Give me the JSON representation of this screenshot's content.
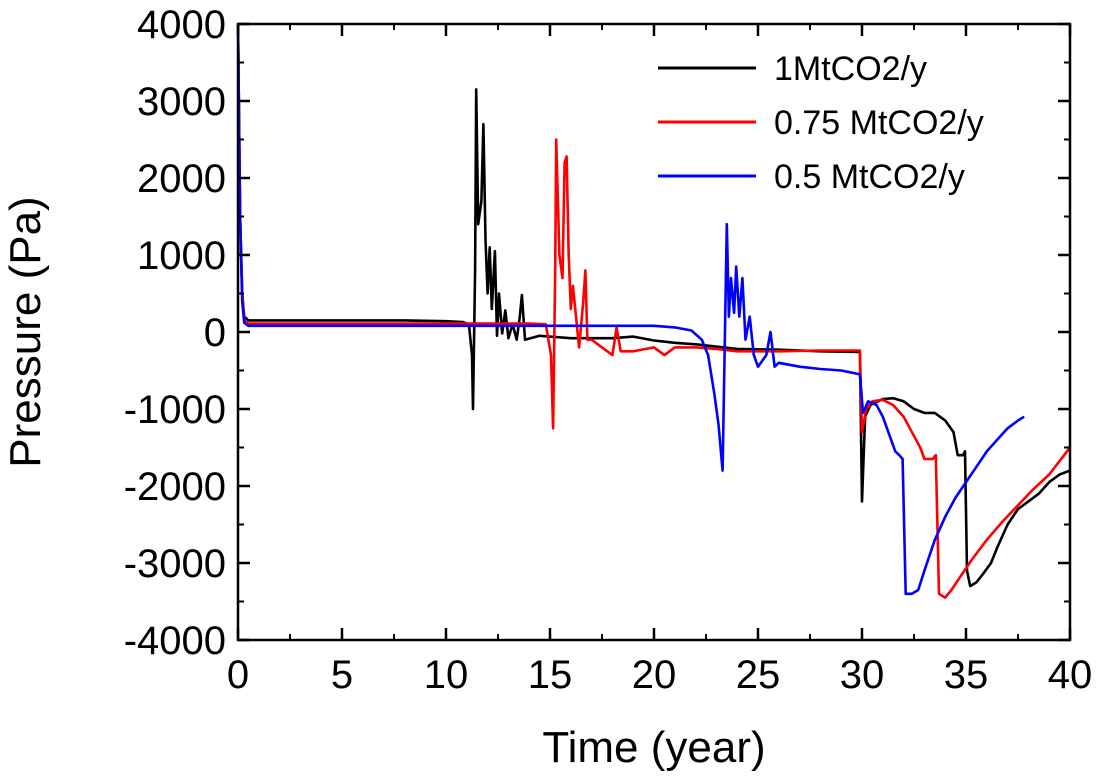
{
  "chart_data": {
    "type": "line",
    "title": "",
    "xlabel": "Time (year)",
    "ylabel": "Pressure (Pa)",
    "xlim": [
      0,
      40
    ],
    "ylim": [
      -4000,
      4000
    ],
    "xticks": [
      0,
      5,
      10,
      15,
      20,
      25,
      30,
      35,
      40
    ],
    "yticks": [
      -4000,
      -3000,
      -2000,
      -1000,
      0,
      1000,
      2000,
      3000,
      4000
    ],
    "grid": false,
    "legend_position": "top-right",
    "series": [
      {
        "name": "1MtCO2/y",
        "color": "#000000",
        "points": [
          [
            0,
            4000
          ],
          [
            0.1,
            1500
          ],
          [
            0.2,
            500
          ],
          [
            0.3,
            200
          ],
          [
            0.5,
            150
          ],
          [
            2,
            150
          ],
          [
            5,
            150
          ],
          [
            8,
            150
          ],
          [
            10,
            140
          ],
          [
            10.8,
            130
          ],
          [
            11.1,
            100
          ],
          [
            11.25,
            -300
          ],
          [
            11.3,
            -1000
          ],
          [
            11.4,
            800
          ],
          [
            11.45,
            3150
          ],
          [
            11.55,
            1400
          ],
          [
            11.7,
            1700
          ],
          [
            11.8,
            2700
          ],
          [
            11.9,
            1200
          ],
          [
            12,
            500
          ],
          [
            12.1,
            1100
          ],
          [
            12.2,
            300
          ],
          [
            12.35,
            1050
          ],
          [
            12.45,
            -50
          ],
          [
            12.55,
            500
          ],
          [
            12.7,
            -20
          ],
          [
            12.85,
            280
          ],
          [
            13,
            -80
          ],
          [
            13.2,
            100
          ],
          [
            13.4,
            -100
          ],
          [
            13.55,
            200
          ],
          [
            13.65,
            480
          ],
          [
            13.8,
            -100
          ],
          [
            14.5,
            -50
          ],
          [
            16,
            -80
          ],
          [
            18,
            -80
          ],
          [
            19,
            -60
          ],
          [
            20,
            -110
          ],
          [
            21,
            -140
          ],
          [
            22,
            -160
          ],
          [
            24,
            -220
          ],
          [
            26,
            -230
          ],
          [
            28,
            -250
          ],
          [
            29.9,
            -260
          ],
          [
            30,
            -2200
          ],
          [
            30.15,
            -1100
          ],
          [
            30.4,
            -950
          ],
          [
            31,
            -870
          ],
          [
            31.5,
            -860
          ],
          [
            32,
            -900
          ],
          [
            32.5,
            -1000
          ],
          [
            33,
            -1050
          ],
          [
            33.5,
            -1050
          ],
          [
            34,
            -1150
          ],
          [
            34.4,
            -1300
          ],
          [
            34.6,
            -1600
          ],
          [
            34.85,
            -1600
          ],
          [
            34.95,
            -1550
          ],
          [
            35.05,
            -3100
          ],
          [
            35.2,
            -3300
          ],
          [
            35.5,
            -3250
          ],
          [
            35.8,
            -3150
          ],
          [
            36.2,
            -3000
          ],
          [
            36.5,
            -2800
          ],
          [
            37,
            -2500
          ],
          [
            37.5,
            -2300
          ],
          [
            38,
            -2200
          ],
          [
            38.5,
            -2100
          ],
          [
            39,
            -1950
          ],
          [
            39.5,
            -1850
          ],
          [
            40,
            -1800
          ]
        ]
      },
      {
        "name": "0.75 MtCO2/y",
        "color": "#ff0000",
        "points": [
          [
            0,
            4000
          ],
          [
            0.1,
            1500
          ],
          [
            0.2,
            500
          ],
          [
            0.3,
            150
          ],
          [
            0.5,
            110
          ],
          [
            5,
            110
          ],
          [
            10,
            110
          ],
          [
            14,
            110
          ],
          [
            14.8,
            100
          ],
          [
            15.05,
            -300
          ],
          [
            15.15,
            -1250
          ],
          [
            15.25,
            800
          ],
          [
            15.3,
            2500
          ],
          [
            15.45,
            1000
          ],
          [
            15.6,
            700
          ],
          [
            15.7,
            2200
          ],
          [
            15.8,
            2280
          ],
          [
            15.9,
            1000
          ],
          [
            16,
            300
          ],
          [
            16.1,
            600
          ],
          [
            16.25,
            200
          ],
          [
            16.4,
            -200
          ],
          [
            16.6,
            400
          ],
          [
            16.7,
            800
          ],
          [
            16.8,
            -100
          ],
          [
            17,
            -100
          ],
          [
            17.5,
            -200
          ],
          [
            18,
            -300
          ],
          [
            18.2,
            60
          ],
          [
            18.4,
            -250
          ],
          [
            19,
            -250
          ],
          [
            20,
            -200
          ],
          [
            20.5,
            -300
          ],
          [
            21,
            -200
          ],
          [
            22,
            -200
          ],
          [
            23,
            -220
          ],
          [
            24,
            -250
          ],
          [
            26,
            -250
          ],
          [
            28,
            -240
          ],
          [
            29.9,
            -240
          ],
          [
            30,
            -1300
          ],
          [
            30.2,
            -1000
          ],
          [
            30.5,
            -900
          ],
          [
            31,
            -880
          ],
          [
            31.5,
            -950
          ],
          [
            32,
            -1100
          ],
          [
            32.5,
            -1350
          ],
          [
            32.8,
            -1500
          ],
          [
            33,
            -1650
          ],
          [
            33.4,
            -1650
          ],
          [
            33.55,
            -1600
          ],
          [
            33.7,
            -3400
          ],
          [
            34,
            -3450
          ],
          [
            34.3,
            -3350
          ],
          [
            34.8,
            -3150
          ],
          [
            35.3,
            -2950
          ],
          [
            36,
            -2700
          ],
          [
            36.8,
            -2450
          ],
          [
            37.5,
            -2250
          ],
          [
            38.2,
            -2050
          ],
          [
            39,
            -1850
          ],
          [
            40,
            -1500
          ]
        ]
      },
      {
        "name": "0.5 MtCO2/y",
        "color": "#0000ff",
        "points": [
          [
            0,
            4000
          ],
          [
            0.1,
            1500
          ],
          [
            0.2,
            400
          ],
          [
            0.3,
            120
          ],
          [
            0.5,
            80
          ],
          [
            5,
            80
          ],
          [
            10,
            80
          ],
          [
            15,
            80
          ],
          [
            20,
            80
          ],
          [
            21,
            60
          ],
          [
            21.8,
            20
          ],
          [
            22.3,
            -100
          ],
          [
            22.6,
            -300
          ],
          [
            22.9,
            -800
          ],
          [
            23.1,
            -1200
          ],
          [
            23.3,
            -1800
          ],
          [
            23.4,
            -200
          ],
          [
            23.5,
            1400
          ],
          [
            23.6,
            200
          ],
          [
            23.7,
            700
          ],
          [
            23.85,
            250
          ],
          [
            23.95,
            850
          ],
          [
            24.1,
            200
          ],
          [
            24.25,
            700
          ],
          [
            24.4,
            -100
          ],
          [
            24.6,
            200
          ],
          [
            24.8,
            -300
          ],
          [
            25,
            -450
          ],
          [
            25.4,
            -300
          ],
          [
            25.6,
            0
          ],
          [
            25.8,
            -450
          ],
          [
            26,
            -400
          ],
          [
            27,
            -450
          ],
          [
            28,
            -480
          ],
          [
            29,
            -500
          ],
          [
            29.9,
            -550
          ],
          [
            30.05,
            -1050
          ],
          [
            30.3,
            -900
          ],
          [
            30.7,
            -950
          ],
          [
            31,
            -1100
          ],
          [
            31.4,
            -1400
          ],
          [
            31.6,
            -1550
          ],
          [
            31.8,
            -1600
          ],
          [
            31.95,
            -1650
          ],
          [
            32.1,
            -3400
          ],
          [
            32.4,
            -3400
          ],
          [
            32.7,
            -3350
          ],
          [
            33,
            -3100
          ],
          [
            33.5,
            -2700
          ],
          [
            34,
            -2400
          ],
          [
            34.5,
            -2150
          ],
          [
            35,
            -1950
          ],
          [
            35.5,
            -1750
          ],
          [
            36,
            -1550
          ],
          [
            36.5,
            -1400
          ],
          [
            37,
            -1250
          ],
          [
            37.5,
            -1150
          ],
          [
            37.8,
            -1100
          ]
        ]
      }
    ]
  }
}
